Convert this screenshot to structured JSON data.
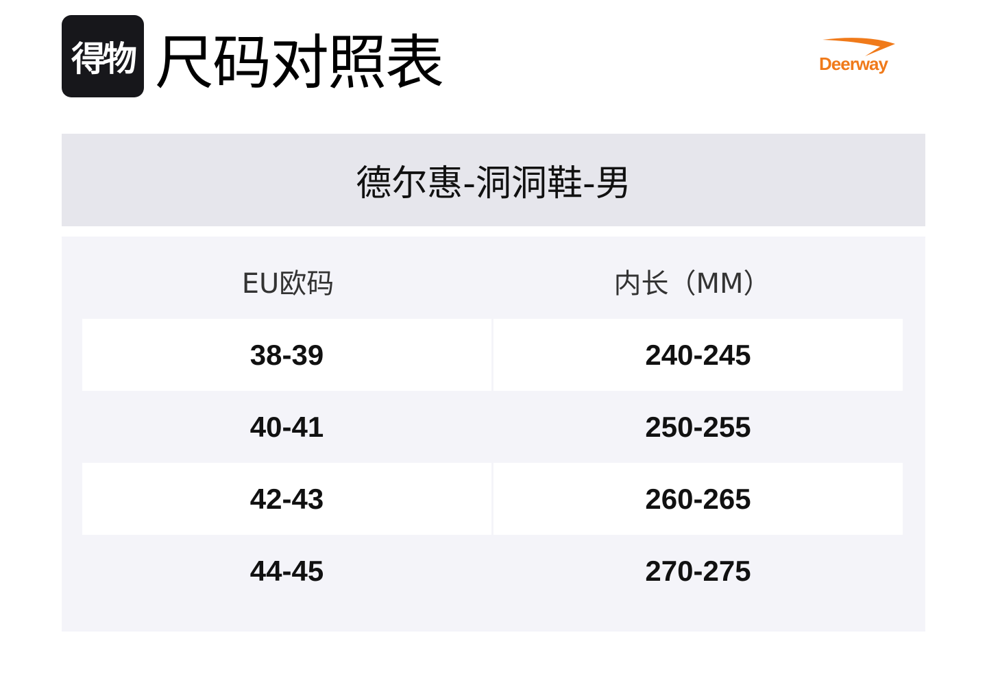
{
  "header": {
    "app_logo_text": "得物",
    "title": "尺码对照表",
    "brand_logo": "Deerway",
    "brand_color": "#f07a1a"
  },
  "subtitle": "德尔惠-洞洞鞋-男",
  "table": {
    "columns": [
      "EU欧码",
      "内长（MM）"
    ],
    "rows": [
      [
        "38-39",
        "240-245"
      ],
      [
        "40-41",
        "250-255"
      ],
      [
        "42-43",
        "260-265"
      ],
      [
        "44-45",
        "270-275"
      ]
    ]
  }
}
